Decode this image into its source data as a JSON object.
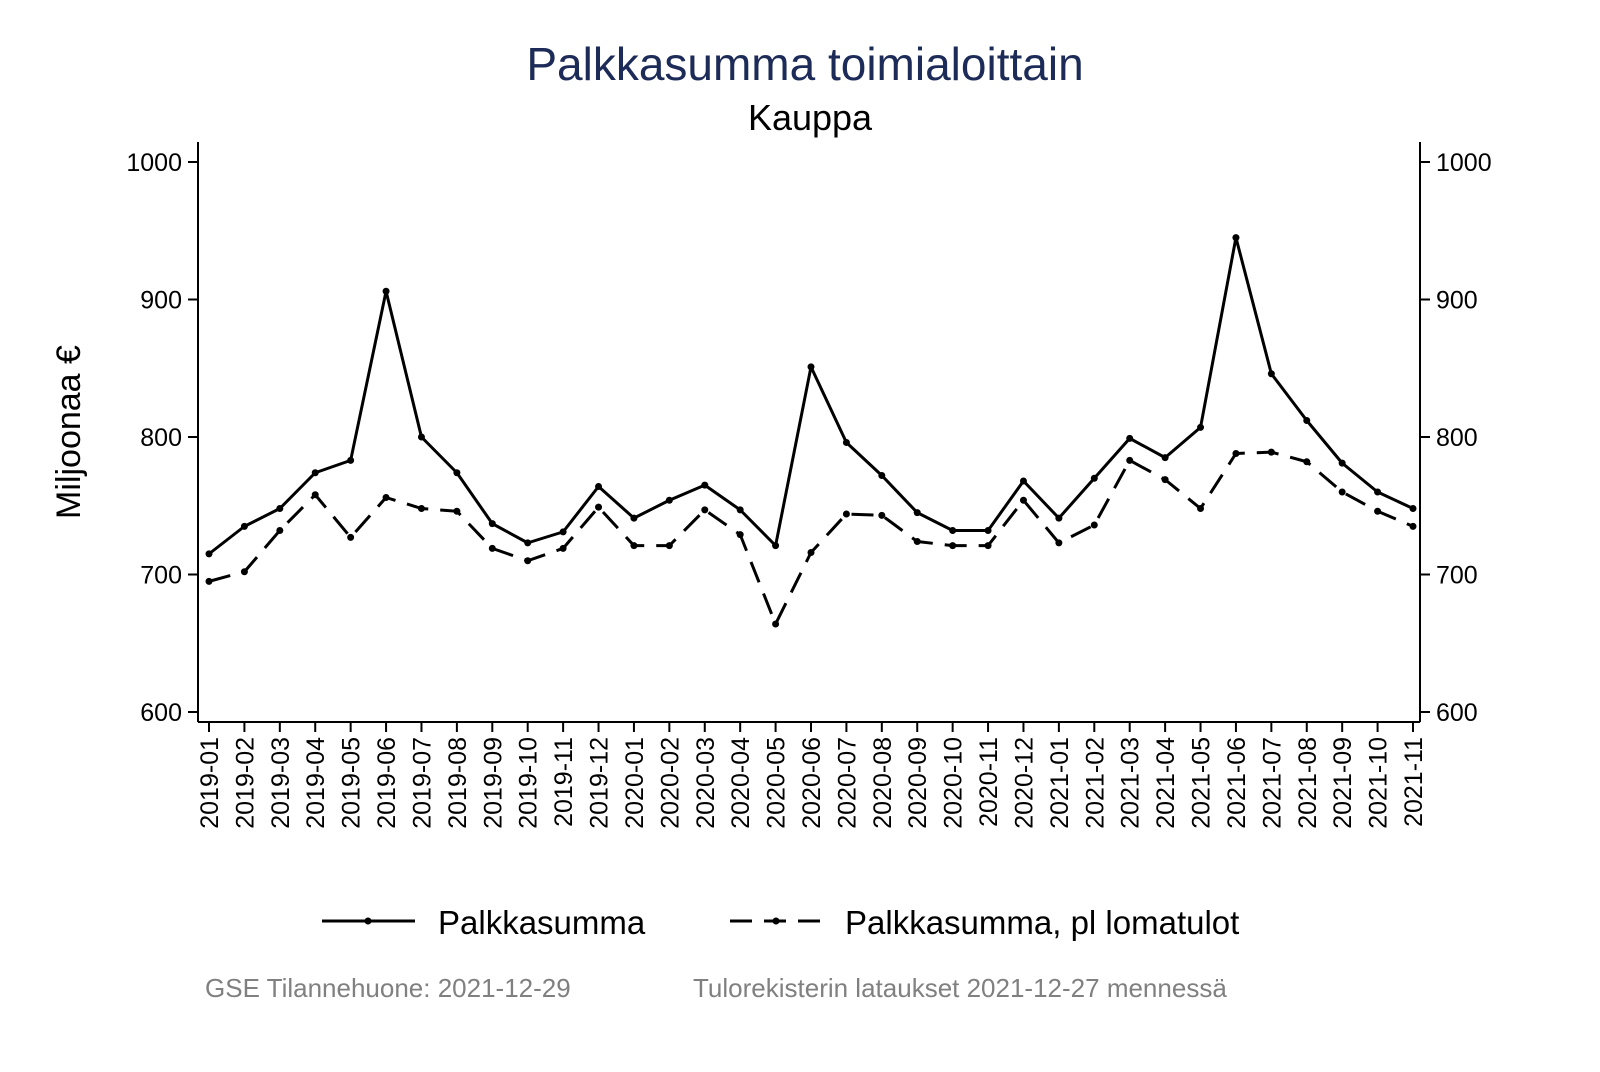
{
  "chart_data": {
    "type": "line",
    "title": "Palkkasumma toimialoittain",
    "subtitle": "Kauppa",
    "ylabel": "Miljoonaa €",
    "xlabel": "",
    "ylim": [
      600,
      1000
    ],
    "yticks": [
      600,
      700,
      800,
      900,
      1000
    ],
    "grid": false,
    "legend_position": "bottom",
    "x": [
      "2019-01",
      "2019-02",
      "2019-03",
      "2019-04",
      "2019-05",
      "2019-06",
      "2019-07",
      "2019-08",
      "2019-09",
      "2019-10",
      "2019-11",
      "2019-12",
      "2020-01",
      "2020-02",
      "2020-03",
      "2020-04",
      "2020-05",
      "2020-06",
      "2020-07",
      "2020-08",
      "2020-09",
      "2020-10",
      "2020-11",
      "2020-12",
      "2021-01",
      "2021-02",
      "2021-03",
      "2021-04",
      "2021-05",
      "2021-06",
      "2021-07",
      "2021-08",
      "2021-09",
      "2021-10",
      "2021-11"
    ],
    "series": [
      {
        "name": "Palkkasumma",
        "style": "solid",
        "values": [
          715,
          735,
          748,
          774,
          783,
          906,
          800,
          774,
          737,
          723,
          731,
          764,
          741,
          754,
          765,
          747,
          721,
          851,
          796,
          772,
          745,
          732,
          732,
          768,
          741,
          770,
          799,
          785,
          807,
          945,
          846,
          812,
          781,
          760,
          748
        ]
      },
      {
        "name": "Palkkasumma, pl lomatulot",
        "style": "dashed",
        "values": [
          695,
          702,
          732,
          758,
          727,
          756,
          748,
          746,
          719,
          710,
          719,
          749,
          721,
          721,
          747,
          729,
          664,
          716,
          744,
          743,
          724,
          721,
          721,
          754,
          723,
          736,
          783,
          769,
          748,
          788,
          789,
          782,
          760,
          746,
          735
        ]
      }
    ]
  },
  "footer": {
    "left": "GSE Tilannehuone: 2021-12-29",
    "right": "Tulorekisterin lataukset 2021-12-27 mennessä"
  },
  "colors": {
    "title": "#1c2b57",
    "line": "#000000",
    "footer": "#808080"
  }
}
